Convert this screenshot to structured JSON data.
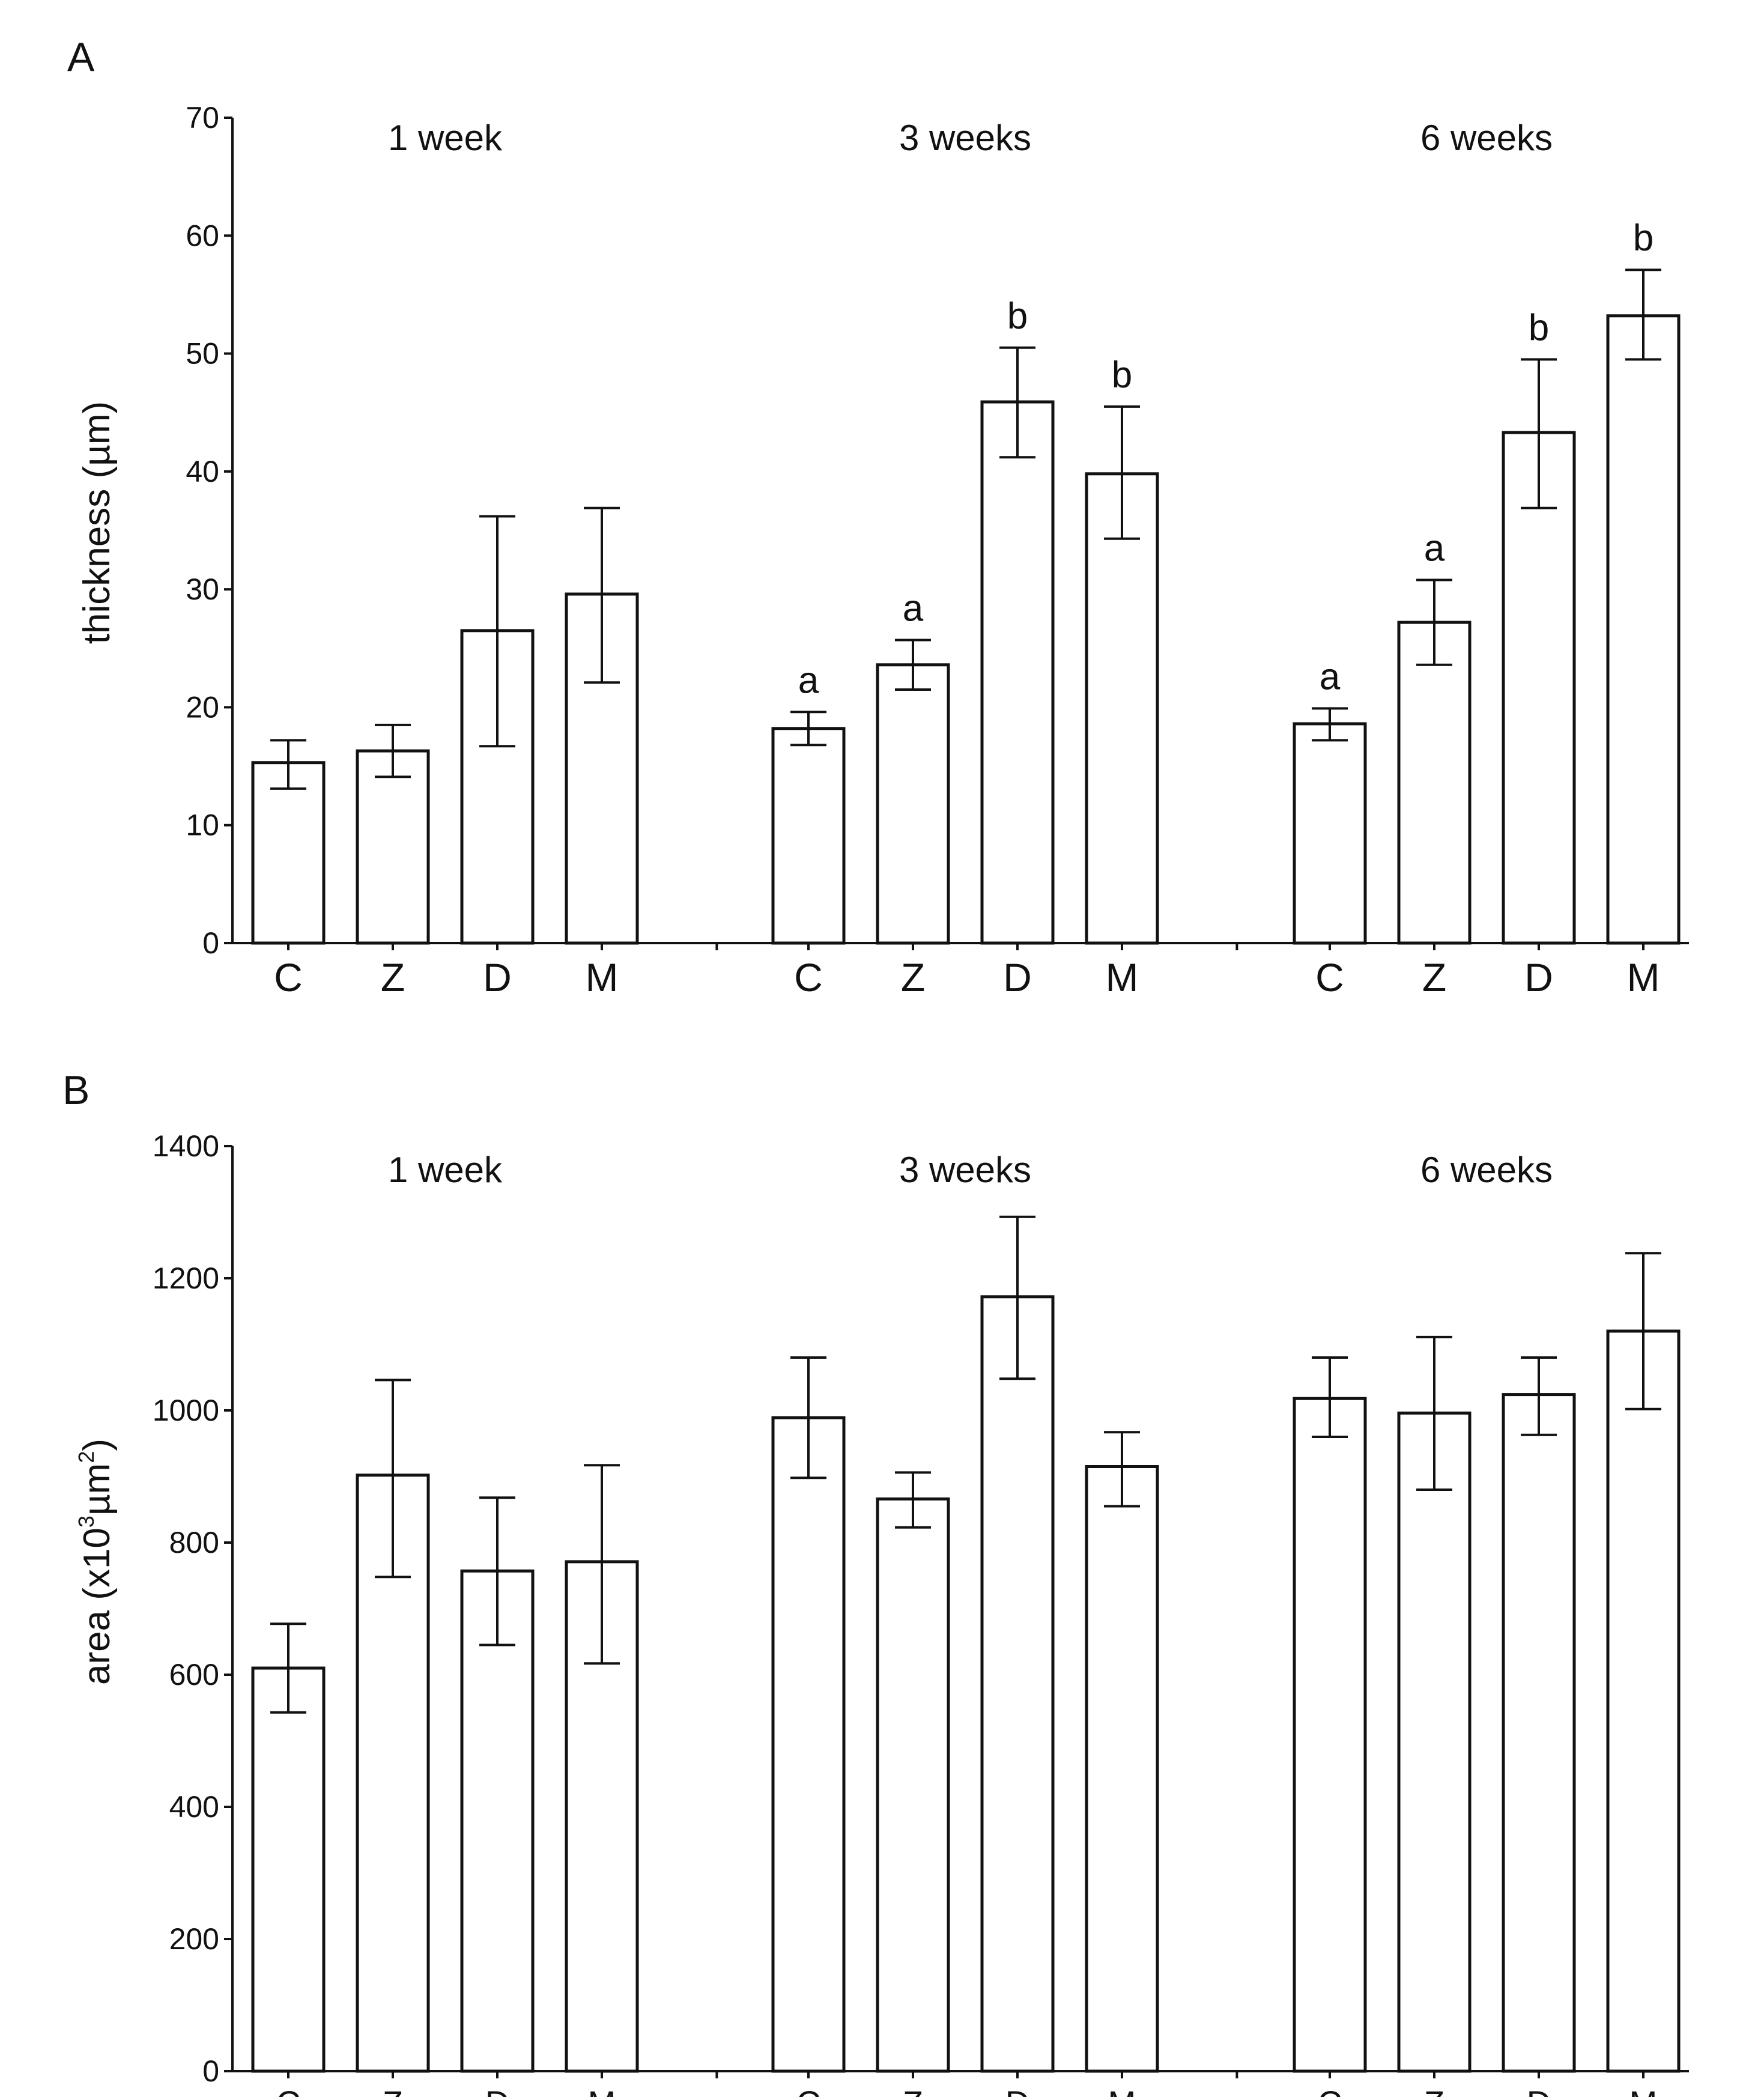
{
  "chart_data": [
    {
      "type": "bar",
      "panel_label": "A",
      "title": "",
      "xlabel": "",
      "ylabel": "thickness (µm)",
      "ylim": [
        0,
        70
      ],
      "yticks": [
        0,
        10,
        20,
        30,
        40,
        50,
        60,
        70
      ],
      "groups": [
        {
          "label": "1 week",
          "bars": [
            {
              "category": "C",
              "value": 15.3,
              "err_low": 13.1,
              "err_high": 17.2,
              "letter": ""
            },
            {
              "category": "Z",
              "value": 16.3,
              "err_low": 14.1,
              "err_high": 18.5,
              "letter": ""
            },
            {
              "category": "D",
              "value": 26.5,
              "err_low": 16.7,
              "err_high": 36.2,
              "letter": ""
            },
            {
              "category": "M",
              "value": 29.6,
              "err_low": 22.1,
              "err_high": 36.9,
              "letter": ""
            }
          ]
        },
        {
          "label": "3 weeks",
          "bars": [
            {
              "category": "C",
              "value": 18.2,
              "err_low": 16.8,
              "err_high": 19.6,
              "letter": "a"
            },
            {
              "category": "Z",
              "value": 23.6,
              "err_low": 21.5,
              "err_high": 25.7,
              "letter": "a"
            },
            {
              "category": "D",
              "value": 45.9,
              "err_low": 41.2,
              "err_high": 50.5,
              "letter": "b"
            },
            {
              "category": "M",
              "value": 39.8,
              "err_low": 34.3,
              "err_high": 45.5,
              "letter": "b"
            }
          ]
        },
        {
          "label": "6 weeks",
          "bars": [
            {
              "category": "C",
              "value": 18.6,
              "err_low": 17.2,
              "err_high": 19.9,
              "letter": "a"
            },
            {
              "category": "Z",
              "value": 27.2,
              "err_low": 23.6,
              "err_high": 30.8,
              "letter": "a"
            },
            {
              "category": "D",
              "value": 43.3,
              "err_low": 36.9,
              "err_high": 49.5,
              "letter": "b"
            },
            {
              "category": "M",
              "value": 53.2,
              "err_low": 49.5,
              "err_high": 57.1,
              "letter": "b"
            }
          ]
        }
      ]
    },
    {
      "type": "bar",
      "panel_label": "B",
      "title": "",
      "xlabel": "",
      "ylabel_main": "area (x10",
      "ylabel_sup1": "3",
      "ylabel_mid": "µm",
      "ylabel_sup2": "2",
      "ylabel_end": ")",
      "ylim": [
        0,
        1400
      ],
      "yticks": [
        0,
        200,
        400,
        600,
        800,
        1000,
        1200,
        1400
      ],
      "groups": [
        {
          "label": "1 week",
          "bars": [
            {
              "category": "C",
              "value": 610,
              "err_low": 543,
              "err_high": 677,
              "letter": ""
            },
            {
              "category": "Z",
              "value": 902,
              "err_low": 748,
              "err_high": 1046,
              "letter": ""
            },
            {
              "category": "D",
              "value": 757,
              "err_low": 645,
              "err_high": 868,
              "letter": ""
            },
            {
              "category": "M",
              "value": 771,
              "err_low": 617,
              "err_high": 917,
              "letter": ""
            }
          ]
        },
        {
          "label": "3 weeks",
          "bars": [
            {
              "category": "C",
              "value": 989,
              "err_low": 898,
              "err_high": 1080,
              "letter": ""
            },
            {
              "category": "Z",
              "value": 866,
              "err_low": 823,
              "err_high": 906,
              "letter": ""
            },
            {
              "category": "D",
              "value": 1172,
              "err_low": 1048,
              "err_high": 1293,
              "letter": ""
            },
            {
              "category": "M",
              "value": 915,
              "err_low": 855,
              "err_high": 967,
              "letter": ""
            }
          ]
        },
        {
          "label": "6 weeks",
          "bars": [
            {
              "category": "C",
              "value": 1018,
              "err_low": 960,
              "err_high": 1080,
              "letter": ""
            },
            {
              "category": "Z",
              "value": 996,
              "err_low": 880,
              "err_high": 1111,
              "letter": ""
            },
            {
              "category": "D",
              "value": 1024,
              "err_low": 963,
              "err_high": 1080,
              "letter": ""
            },
            {
              "category": "M",
              "value": 1120,
              "err_low": 1002,
              "err_high": 1238,
              "letter": ""
            }
          ]
        }
      ]
    }
  ]
}
